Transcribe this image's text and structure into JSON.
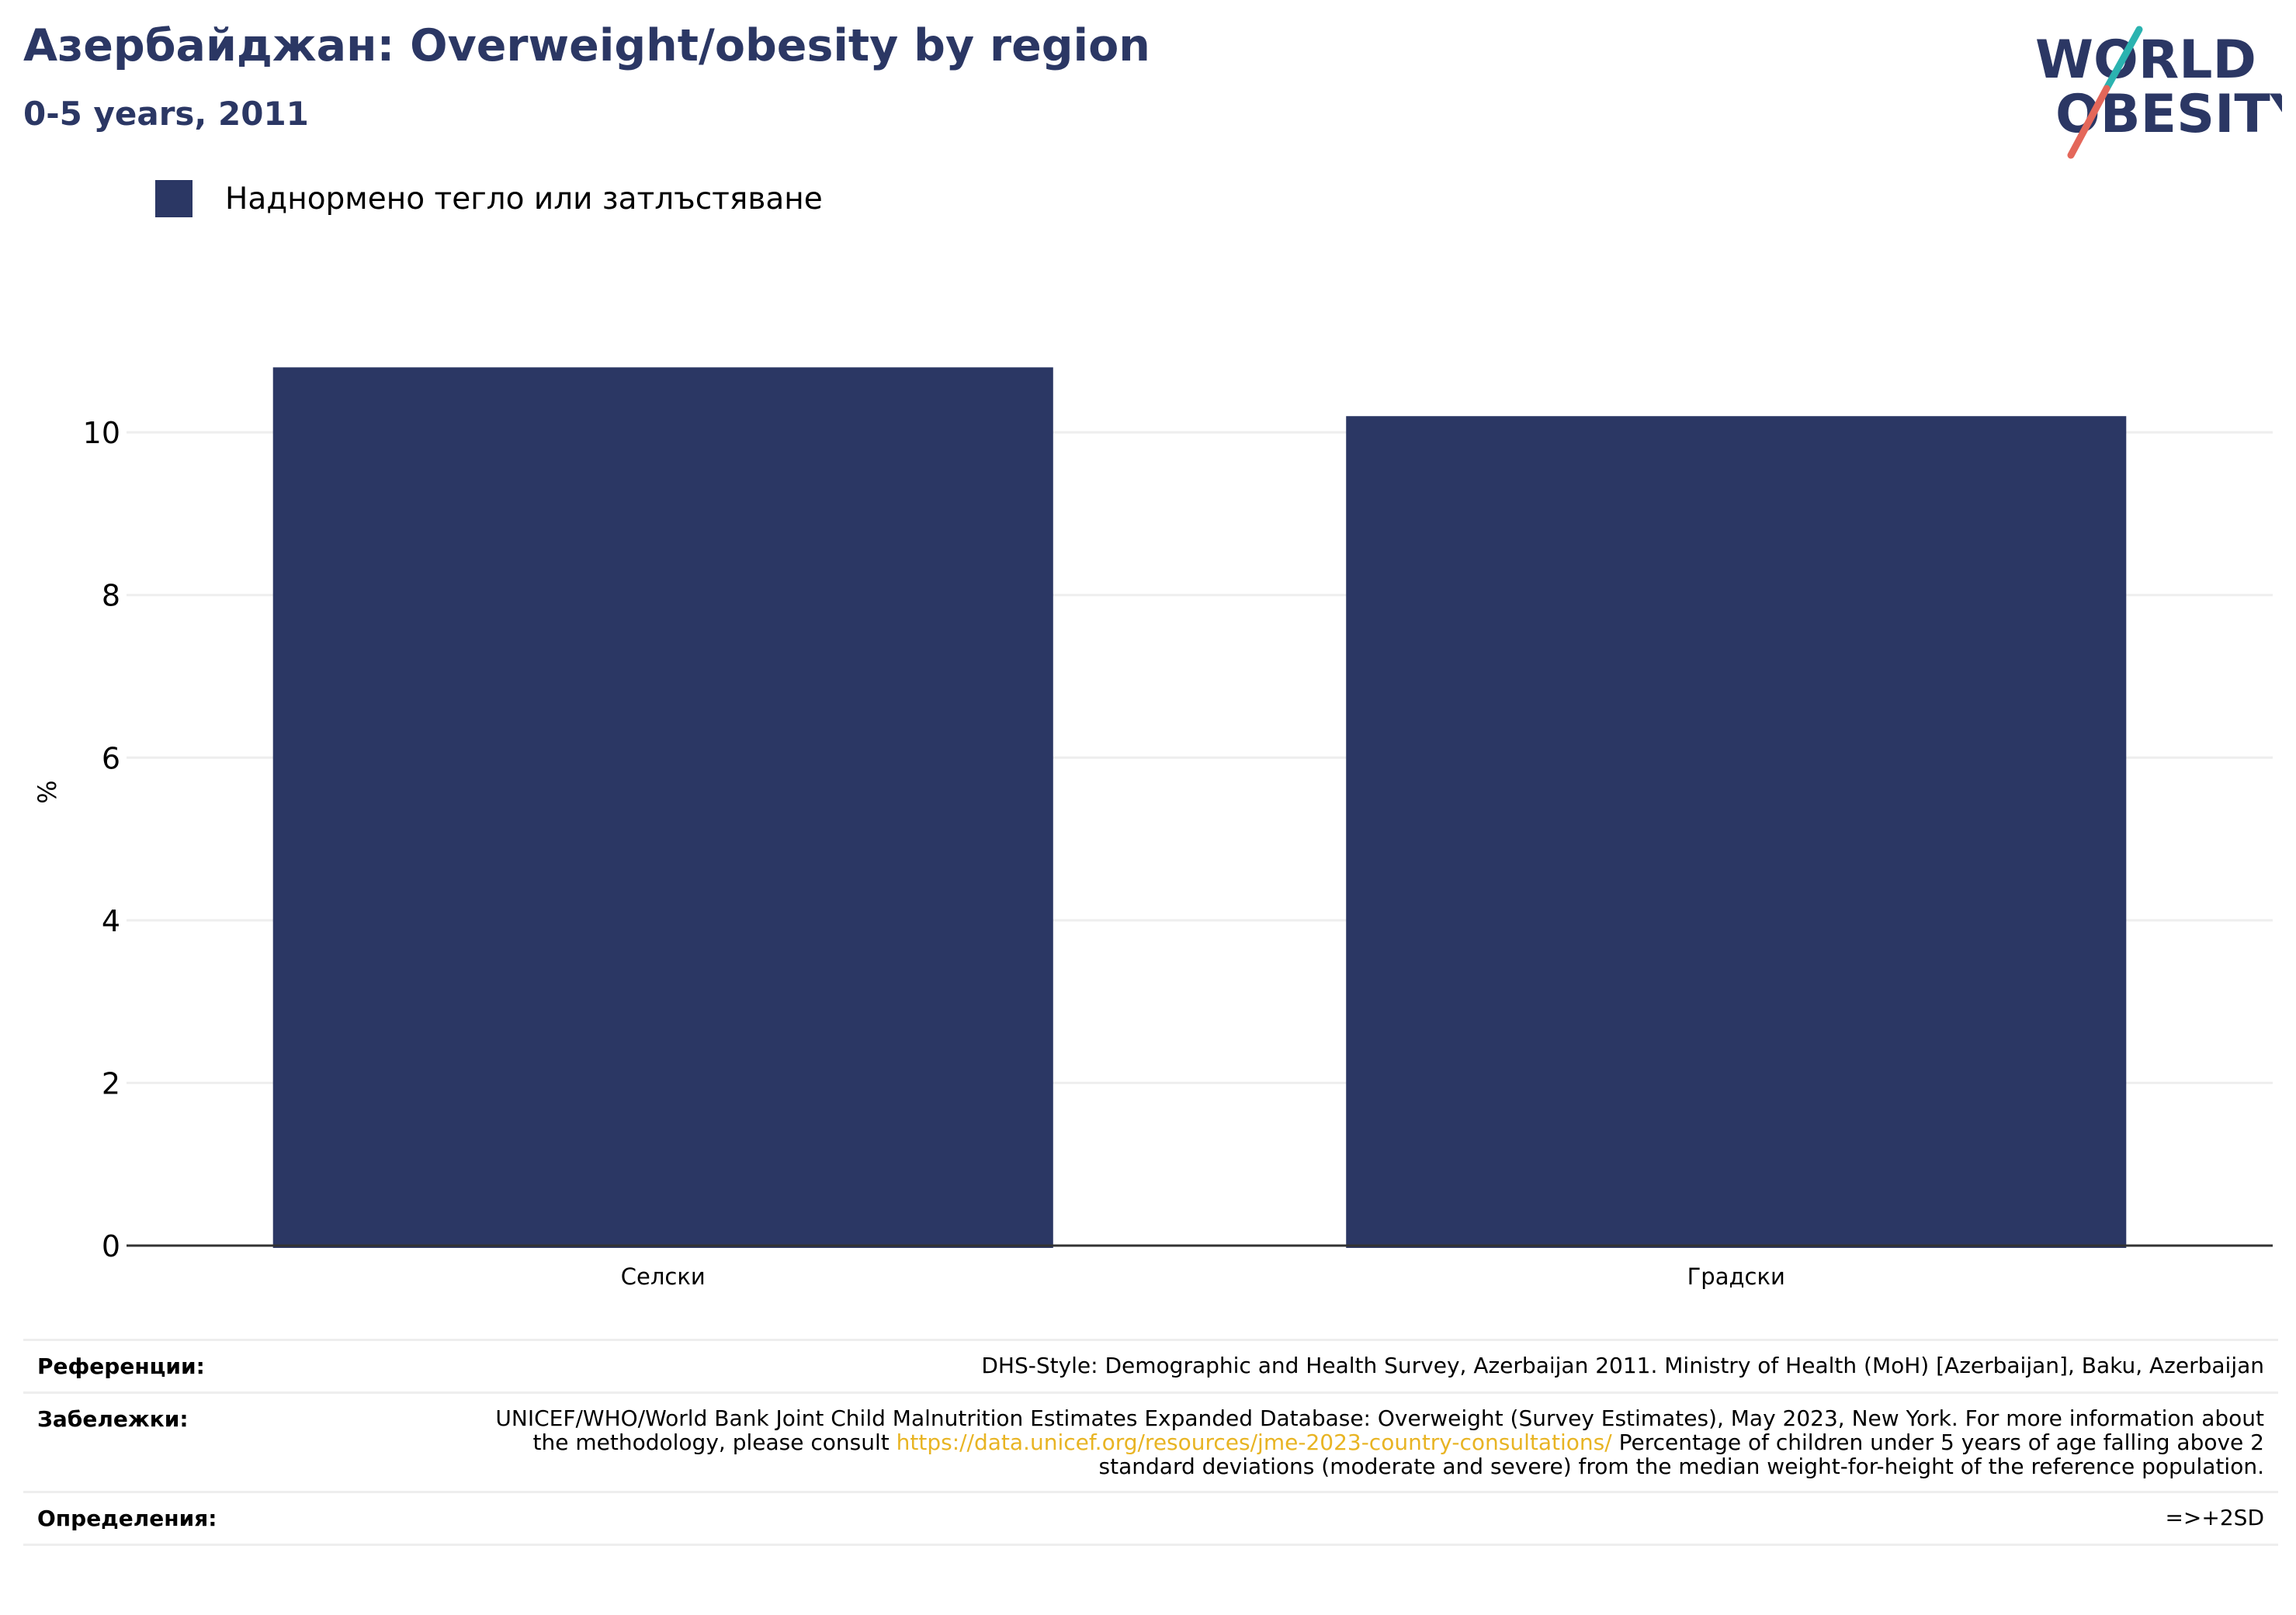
{
  "header": {
    "title": "Азербайджан: Overweight/obesity by region",
    "subtitle": "0-5 years, 2011"
  },
  "logo": {
    "line1": "WORLD",
    "line2": "OBESITY"
  },
  "colors": {
    "bar": "#2b3764",
    "text_primary": "#2b3764",
    "link": "#e8b423",
    "grid": "#eeeeee"
  },
  "chart_data": {
    "type": "bar",
    "categories": [
      "Селски",
      "Градски"
    ],
    "series": [
      {
        "name": "Наднормено тегло или затлъстяване",
        "values": [
          10.8,
          10.2
        ]
      }
    ],
    "ylabel": "%",
    "xlabel": "",
    "ylim": [
      0,
      11.5
    ],
    "yticks": [
      0,
      2,
      4,
      6,
      8,
      10
    ],
    "grid": true,
    "legend": "top-left"
  },
  "references": {
    "sources_label": "Референции:",
    "sources_text": "DHS-Style: Demographic and Health Survey, Azerbaijan 2011. Ministry of Health (MoH) [Azerbaijan], Baku, Azerbaijan",
    "notes_label": "Забележки:",
    "notes_text_1": "UNICEF/WHO/World Bank Joint Child Malnutrition Estimates Expanded Database: Overweight (Survey Estimates), May 2023, New York. For more information about the methodology, please consult",
    "notes_link": "https://data.unicef.org/resources/jme-2023-country-consultations/",
    "notes_text_2": "Percentage of children under 5 years of age falling above 2 standard deviations (moderate and severe) from the median weight-for-height of the reference population.",
    "definitions_label": "Определения:",
    "definitions_text": "=>+2SD"
  }
}
